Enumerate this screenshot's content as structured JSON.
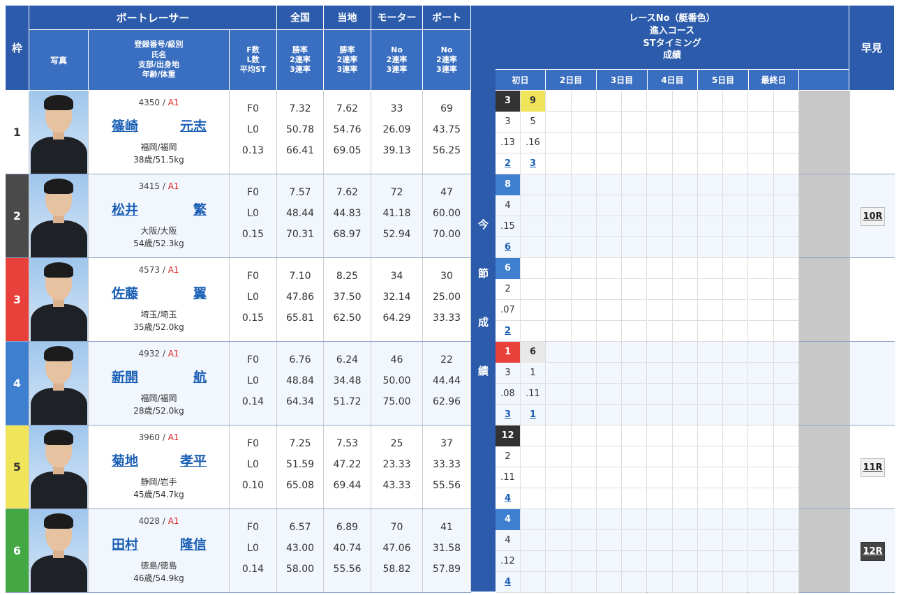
{
  "header": {
    "frame": "枠",
    "racer": "ボートレーサー",
    "photo": "写真",
    "regline1": "登録番号/級別",
    "regline2": "氏名",
    "regline3": "支部/出身地",
    "regline4": "年齢/体重",
    "fl1": "F数",
    "fl2": "L数",
    "fl3": "平均ST",
    "national": "全国",
    "local": "当地",
    "motor": "モーター",
    "boat": "ボート",
    "rate1": "勝率",
    "rate2": "2連率",
    "rate3": "3連率",
    "no": "No",
    "result_l1": "レースNo（艇番色）",
    "result_l2": "進入コース",
    "result_l3": "STタイミング",
    "result_l4": "成績",
    "days": [
      "初日",
      "2日目",
      "3日目",
      "4日目",
      "5日目",
      "最終日"
    ],
    "early": "早見",
    "vertical": [
      "今",
      "節",
      "成",
      "績"
    ]
  },
  "colors": {
    "header": "#2b5baa",
    "frame": [
      "#ffffff",
      "#4a4a4a",
      "#e8403a",
      "#3e7fd0",
      "#f0e45a",
      "#43a843"
    ],
    "frame_text": [
      "#333333",
      "#ffffff",
      "#ffffff",
      "#ffffff",
      "#333333",
      "#ffffff"
    ]
  },
  "racers": [
    {
      "frame": "1",
      "reg": "4350",
      "cls": "A1",
      "last": "篠崎",
      "first": "元志",
      "branch": "福岡/福岡",
      "age": "38歳/51.5kg",
      "f": "F0",
      "l": "L0",
      "st": "0.13",
      "nat": [
        "7.32",
        "50.78",
        "66.41"
      ],
      "loc": [
        "7.62",
        "54.76",
        "69.05"
      ],
      "motor": [
        "33",
        "26.09",
        "39.13"
      ],
      "boat": [
        "69",
        "43.75",
        "56.25"
      ],
      "results": [
        {
          "race": "3",
          "course": "3",
          "st": ".13",
          "rank": "2",
          "color": "#333333",
          "text": "#ffffff"
        },
        {
          "race": "9",
          "course": "5",
          "st": ".16",
          "rank": "3",
          "color": "#f0e45a",
          "text": "#333333"
        }
      ],
      "early": ""
    },
    {
      "frame": "2",
      "reg": "3415",
      "cls": "A1",
      "last": "松井",
      "first": "繁",
      "branch": "大阪/大阪",
      "age": "54歳/52.3kg",
      "f": "F0",
      "l": "L0",
      "st": "0.15",
      "nat": [
        "7.57",
        "48.44",
        "70.31"
      ],
      "loc": [
        "7.62",
        "44.83",
        "68.97"
      ],
      "motor": [
        "72",
        "41.18",
        "52.94"
      ],
      "boat": [
        "47",
        "60.00",
        "70.00"
      ],
      "results": [
        {
          "race": "8",
          "course": "4",
          "st": ".15",
          "rank": "6",
          "color": "#3e7fd0",
          "text": "#ffffff"
        }
      ],
      "early": "10R"
    },
    {
      "frame": "3",
      "reg": "4573",
      "cls": "A1",
      "last": "佐藤",
      "first": "翼",
      "branch": "埼玉/埼玉",
      "age": "35歳/52.0kg",
      "f": "F0",
      "l": "L0",
      "st": "0.15",
      "nat": [
        "7.10",
        "47.86",
        "65.81"
      ],
      "loc": [
        "8.25",
        "37.50",
        "62.50"
      ],
      "motor": [
        "34",
        "32.14",
        "64.29"
      ],
      "boat": [
        "30",
        "25.00",
        "33.33"
      ],
      "results": [
        {
          "race": "6",
          "course": "2",
          "st": ".07",
          "rank": "2",
          "color": "#3e7fd0",
          "text": "#ffffff"
        }
      ],
      "early": ""
    },
    {
      "frame": "4",
      "reg": "4932",
      "cls": "A1",
      "last": "新開",
      "first": "航",
      "branch": "福岡/福岡",
      "age": "28歳/52.0kg",
      "f": "F0",
      "l": "L0",
      "st": "0.14",
      "nat": [
        "6.76",
        "48.84",
        "64.34"
      ],
      "loc": [
        "6.24",
        "34.48",
        "51.72"
      ],
      "motor": [
        "46",
        "50.00",
        "75.00"
      ],
      "boat": [
        "22",
        "44.44",
        "62.96"
      ],
      "results": [
        {
          "race": "1",
          "course": "3",
          "st": ".08",
          "rank": "3",
          "color": "#e8403a",
          "text": "#ffffff"
        },
        {
          "race": "6",
          "course": "1",
          "st": ".11",
          "rank": "1",
          "color": "#e8e8e8",
          "text": "#333333"
        }
      ],
      "early": ""
    },
    {
      "frame": "5",
      "reg": "3960",
      "cls": "A1",
      "last": "菊地",
      "first": "孝平",
      "branch": "静岡/岩手",
      "age": "45歳/54.7kg",
      "f": "F0",
      "l": "L0",
      "st": "0.10",
      "nat": [
        "7.25",
        "51.59",
        "65.08"
      ],
      "loc": [
        "7.53",
        "47.22",
        "69.44"
      ],
      "motor": [
        "25",
        "23.33",
        "43.33"
      ],
      "boat": [
        "37",
        "33.33",
        "55.56"
      ],
      "results": [
        {
          "race": "12",
          "course": "2",
          "st": ".11",
          "rank": "4",
          "color": "#333333",
          "text": "#ffffff"
        }
      ],
      "early": "11R"
    },
    {
      "frame": "6",
      "reg": "4028",
      "cls": "A1",
      "last": "田村",
      "first": "隆信",
      "branch": "徳島/徳島",
      "age": "46歳/54.9kg",
      "f": "F0",
      "l": "L0",
      "st": "0.14",
      "nat": [
        "6.57",
        "43.00",
        "58.00"
      ],
      "loc": [
        "6.89",
        "40.74",
        "55.56"
      ],
      "motor": [
        "70",
        "47.06",
        "58.82"
      ],
      "boat": [
        "41",
        "31.58",
        "57.89"
      ],
      "results": [
        {
          "race": "4",
          "course": "4",
          "st": ".12",
          "rank": "4",
          "color": "#3e7fd0",
          "text": "#ffffff"
        }
      ],
      "early": "12R"
    }
  ]
}
